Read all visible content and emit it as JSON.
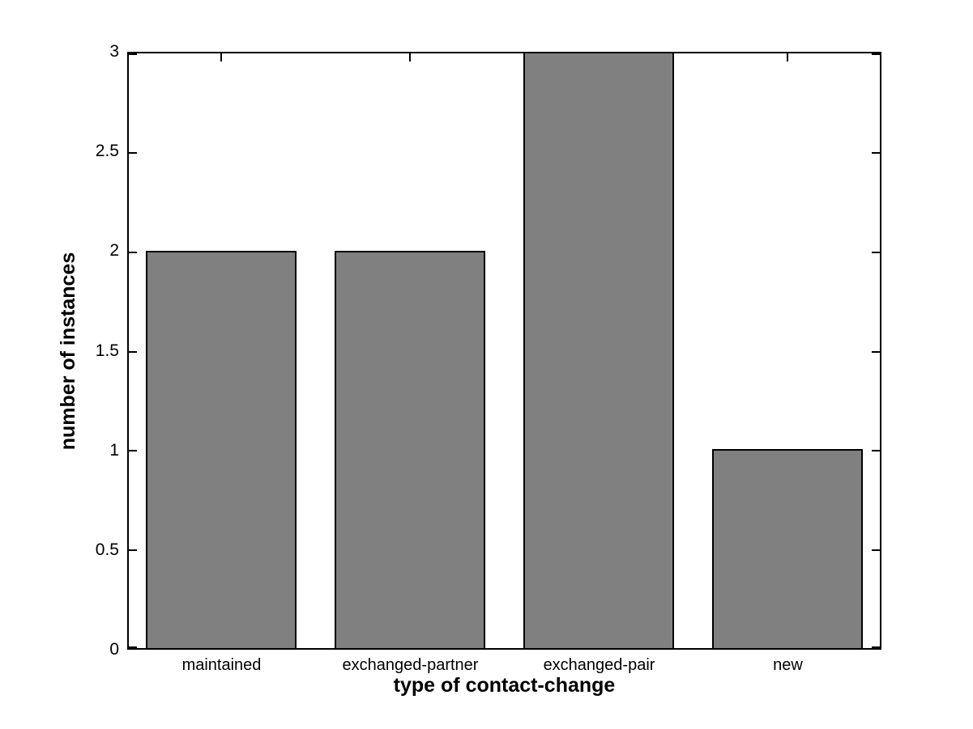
{
  "figure": {
    "background_color": "#ffffff"
  },
  "chart_data": {
    "type": "bar",
    "title": "",
    "xlabel": "type of contact-change",
    "ylabel": "number of instances",
    "categories": [
      "maintained",
      "exchanged-partner",
      "exchanged-pair",
      "new"
    ],
    "values": [
      2,
      2,
      3,
      1
    ],
    "ylim": [
      0,
      3
    ],
    "yticks": [
      0,
      0.5,
      1,
      1.5,
      2,
      2.5,
      3
    ],
    "ytick_labels": [
      "0",
      "0.5",
      "1",
      "1.5",
      "2",
      "2.5",
      "3"
    ],
    "bar_width_fraction": 0.8,
    "bar_color": "#808080",
    "bar_edge_color": "#000000",
    "axis_color": "#000000",
    "grid": false,
    "legend_position": "none",
    "tick_direction": "in",
    "box": true
  }
}
